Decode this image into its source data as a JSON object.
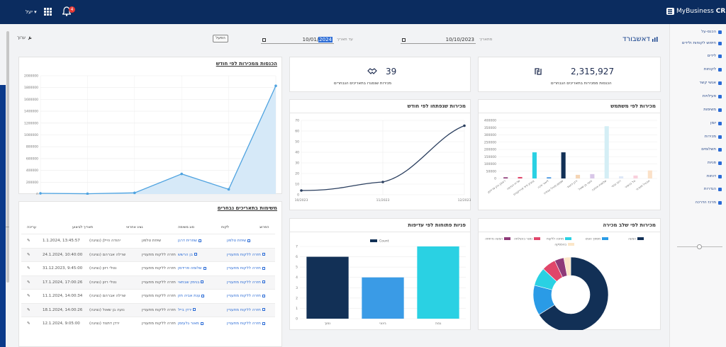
{
  "topbar": {
    "user_label": "יעל",
    "notifications_count": "4",
    "brand_name": "MyBusiness",
    "brand_suffix": "CRM"
  },
  "sidebar": {
    "items": [
      {
        "label": "הכנס-על",
        "icon": "chevron-down-icon"
      },
      {
        "label": "חיפוש לקוחות ולידים",
        "icon": "search-icon"
      },
      {
        "label": "לידים",
        "icon": "funnel-icon"
      },
      {
        "label": "לקוחות",
        "icon": "document-icon"
      },
      {
        "label": "אנשי קשר",
        "icon": "user-icon"
      },
      {
        "label": "פעילויות",
        "icon": "list-icon"
      },
      {
        "label": "משימות",
        "icon": "list-icon"
      },
      {
        "label": "יומן",
        "icon": "calendar-icon"
      },
      {
        "label": "מכירות",
        "icon": "handshake-icon"
      },
      {
        "label": "תשלומים",
        "icon": "list-icon"
      },
      {
        "label": "פניות",
        "icon": "headset-icon"
      },
      {
        "label": "דוחות",
        "icon": "document-icon"
      },
      {
        "label": "הגדרות",
        "icon": "gear-icon"
      },
      {
        "label": "מרכז הדרכה",
        "icon": "question-icon"
      }
    ]
  },
  "header": {
    "title": "דאשבורד",
    "from_label": "מתאריך",
    "from_value": "10/10/2023",
    "to_label": "עד תאריך",
    "to_value_prefix": "10/01/",
    "to_value_year": "2024",
    "filter_label": "הפעל",
    "edit_label": "ערוך"
  },
  "kpis": {
    "revenue_value": "2,315,927",
    "revenue_label": "הכנסות ממכירות בתאריכים הנבחרים",
    "deals_value": "39",
    "deals_label": "מכירות שנסגרו בתאריכים הנבחרים"
  },
  "cards": {
    "revenue_by_month": "הכנסות ממכירות לפי חודש",
    "sales_by_user": "מכירות לפי משתמש",
    "sales_opened_by_month": "מכירות שנפתחו לפי חודש",
    "tasks_title": "משימות בתאריכים נבחרים",
    "sales_by_stage": "מכירות לפי שלב מכירה",
    "tickets_by_priority": "פניות פתוחות לפי עדיפות"
  },
  "tasks": {
    "headers": [
      "הפרוצ",
      "לקוח",
      "סוג משימה",
      "נציג אחראי",
      "תאריך לביצוע",
      "עריכה"
    ],
    "rows": [
      {
        "subject": "שיחת טלפון",
        "client": "שחרית דרגן",
        "type": "שיחת טלפון",
        "rep": "יהודה היילן (נציגה)",
        "date": "1.1.2024, 13:45:57"
      },
      {
        "subject": "חזרה ללקוח מתעניין",
        "client": "בן הרשש",
        "type": "חזרה ללקוח מתעניין",
        "rep": "שרלה אברהם (נציגה)",
        "date": "24.1.2024, 10:40:00"
      },
      {
        "subject": "חזרה ללקוח מתעניין",
        "client": "שלומה פרידמן",
        "type": "חזרה ללקוח מתעניין",
        "rep": "נטלי רזון (נציגה)",
        "date": "31.12.2023, 9:45:00"
      },
      {
        "subject": "חזרה ללקוח מתעניין",
        "client": "בנימין שבתאי",
        "type": "חזרה ללקוח מתעניין",
        "rep": "נטלי רזון (נציגה)",
        "date": "17.1.2024, 17:00:26"
      },
      {
        "subject": "חזרה ללקוח מתעניין",
        "client": "ענת אביה חזן",
        "type": "חזרה ללקוח מתעניין",
        "rep": "שרלה אברהם (נציגה)",
        "date": "11.1.2024, 14:00:34"
      },
      {
        "subject": "חזרה ללקוח מתעניין",
        "client": "ירדן בייל",
        "type": "חזרה ללקוח מתעניין",
        "rep": "נועה בן שאול (נציגה)",
        "date": "18.1.2024, 14:00:26"
      },
      {
        "subject": "חזרה ללקוח מתעניין",
        "client": "מאור גלעזמן",
        "type": "חזרה ללקוח מתעניין",
        "rep": "ירדן דתנוד (נציגה)",
        "date": "12.1.2024, 9:05:00"
      }
    ]
  },
  "chart_data": [
    {
      "id": "revenue_by_month",
      "type": "area",
      "x": [
        "",
        "",
        "",
        "",
        "",
        ""
      ],
      "values": [
        12000,
        5000,
        20000,
        340000,
        80000,
        1830000
      ],
      "ylim": [
        0,
        2000000
      ],
      "yticks": [
        "0",
        "200000",
        "400000",
        "600000",
        "800000",
        "1000000",
        "1200000",
        "1400000",
        "1600000",
        "1800000",
        "2000000"
      ],
      "color": "#4fa3e0",
      "fill": "#d6e9f8"
    },
    {
      "id": "sales_opened_by_month",
      "type": "line",
      "x_ticks": [
        "10/2023",
        "11/2023",
        "12/2023"
      ],
      "values": [
        4,
        12,
        65
      ],
      "ylim": [
        0,
        70
      ],
      "yticks": [
        "0",
        "10",
        "20",
        "30",
        "40",
        "50",
        "60",
        "70"
      ],
      "color": "#2b3f5f"
    },
    {
      "id": "sales_by_user",
      "type": "bar",
      "ylim": [
        0,
        400000
      ],
      "yticks": [
        "0",
        "50000",
        "100000",
        "150000",
        "200000",
        "250000",
        "300000",
        "350000",
        "400000"
      ],
      "values": [
        8000,
        10000,
        180000,
        8000,
        180000,
        25000,
        30000,
        360000,
        15000,
        20000,
        55000
      ],
      "colors": [
        "#8e3a78",
        "#e0466a",
        "#2ad1e3",
        "#3a8fe0",
        "#123056",
        "#f5d5b5",
        "#d9c7e8",
        "#d4eef5",
        "#dfe8f7",
        "#f9d0dd",
        "#fbe1c8"
      ],
      "categories": [
        "ראובן כהן פרידמן",
        "שרית הנדסה",
        "בנציון ודוד פרוייקטים",
        "ליאור ודנה",
        "שמעון מנהל עבודה",
        "ירדן דתנוד",
        "נועה בן שאול",
        "שלומית אוחנה",
        "רועי גבאי",
        "טל בנימיני",
        "אביגיל מוגרבי"
      ]
    },
    {
      "id": "tickets_by_priority",
      "type": "bar",
      "legend": "Count",
      "categories": [
        "נמוך",
        "בינוני",
        "גבוה"
      ],
      "values": [
        6,
        4,
        7
      ],
      "ylim": [
        0,
        7
      ],
      "yticks": [
        "0",
        "1",
        "2",
        "3",
        "4",
        "5",
        "6",
        "7"
      ],
      "colors": [
        "#123056",
        "#3a9be6",
        "#2ad1e3"
      ]
    },
    {
      "id": "sales_by_stage",
      "type": "pie",
      "legend": [
        "הצעה",
        "מסמך הוגש",
        "מחכה ללקוח",
        "נסגר בהצלחה",
        "הצעה נדחתה",
        "בהפסקה"
      ],
      "values": [
        66,
        13,
        8,
        6,
        4,
        3
      ],
      "colors": [
        "#123056",
        "#2a9be6",
        "#2ad1e3",
        "#e0466a",
        "#8e3a78",
        "#fbe6c8"
      ]
    }
  ]
}
